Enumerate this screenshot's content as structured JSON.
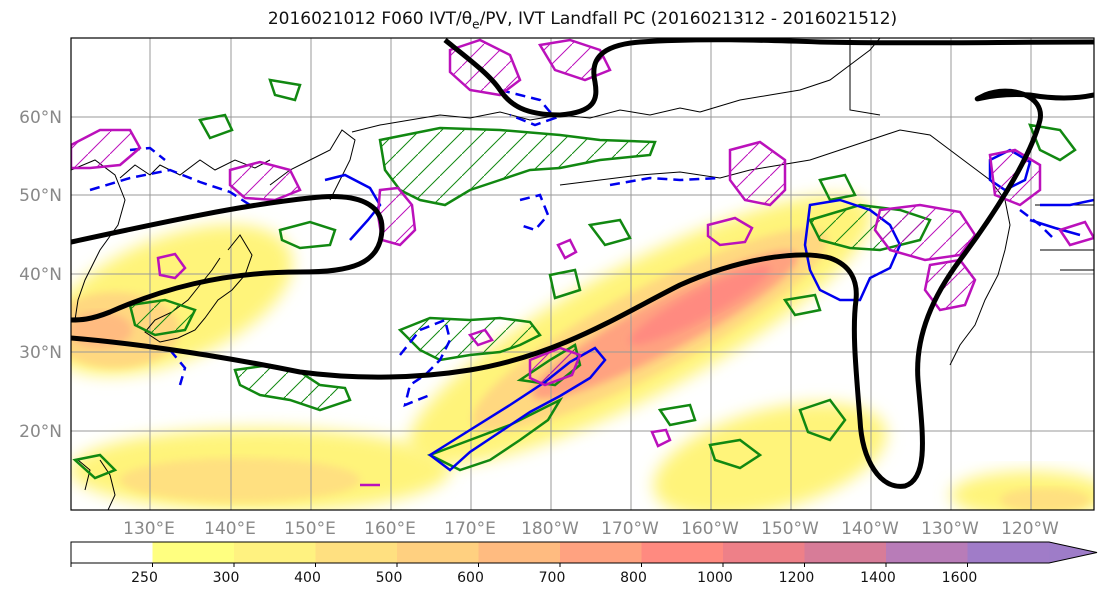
{
  "title": {
    "prefix": "2016021012 F060 IVT/θ",
    "sub": "e",
    "suffix": "/PV, IVT Landfall PC (2016021312 - 2016021512)"
  },
  "map": {
    "lat_labels": [
      "60°N",
      "50°N",
      "40°N",
      "30°N",
      "20°N"
    ],
    "lon_labels": [
      "130°E",
      "140°E",
      "150°E",
      "160°E",
      "170°E",
      "180°W",
      "170°W",
      "160°W",
      "150°W",
      "140°W",
      "130°W",
      "120°W"
    ],
    "colors": {
      "jet_contour": "#000000",
      "green_contour": "#118811",
      "blue_contour": "#0000ee",
      "magenta_contour": "#bb11bb",
      "coast": "#000000",
      "grid": "#999999"
    }
  },
  "colorbar": {
    "levels": [
      "250",
      "300",
      "400",
      "500",
      "600",
      "700",
      "800",
      "1000",
      "1200",
      "1400",
      "1600"
    ],
    "colors": [
      "#ffffff",
      "#ffff80",
      "#fff280",
      "#ffe080",
      "#ffd080",
      "#ffbb80",
      "#ffa280",
      "#ff8a80",
      "#ee8088",
      "#d77c98",
      "#b87cb8",
      "#a07cc8"
    ]
  }
}
